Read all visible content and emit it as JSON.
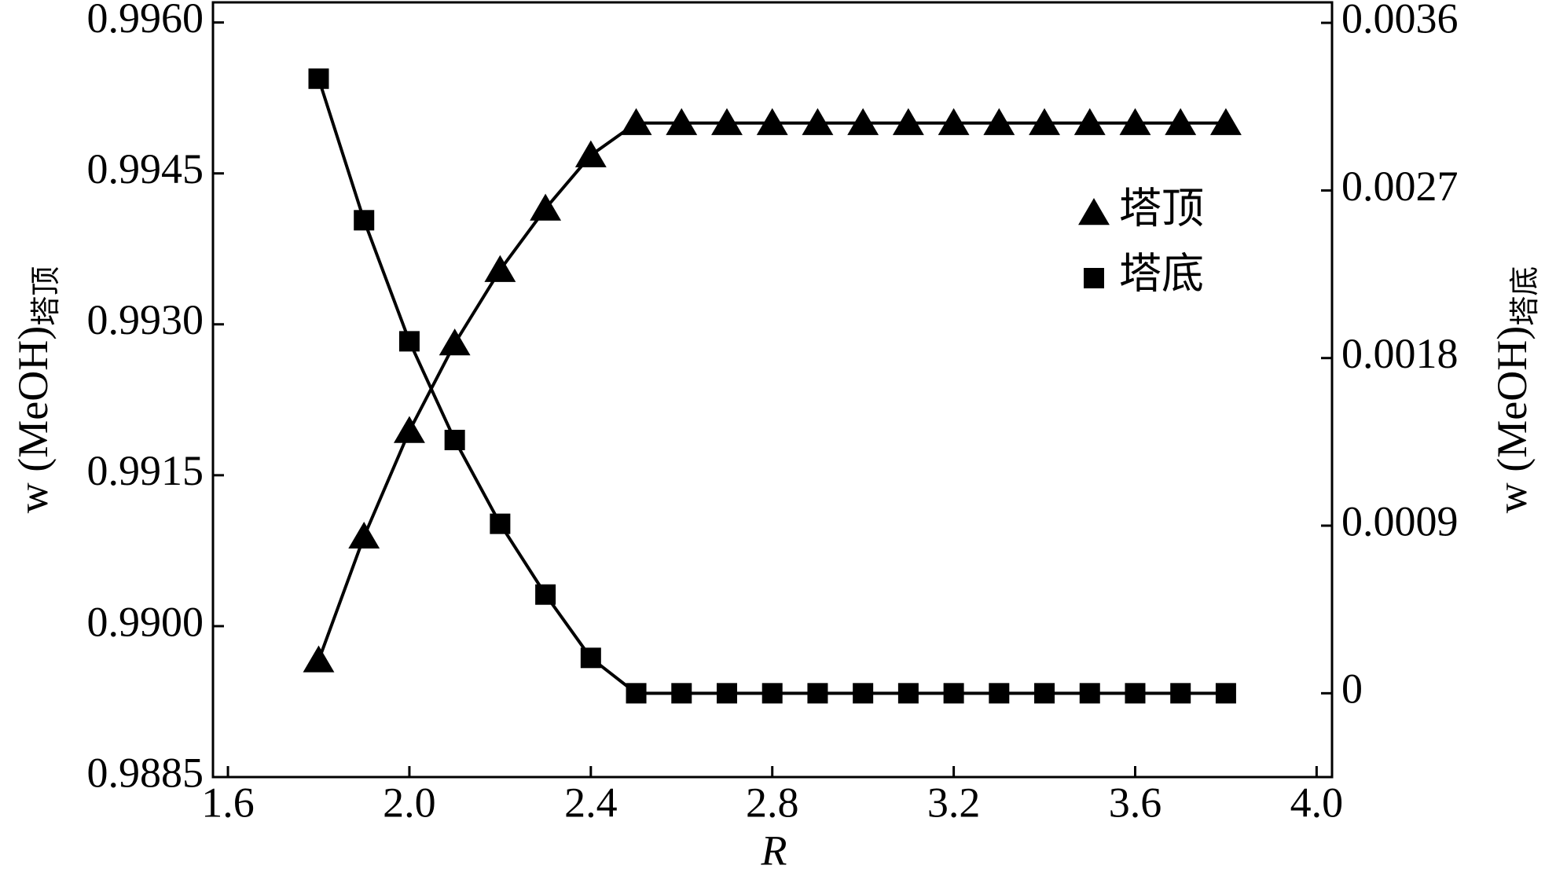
{
  "chart_data": {
    "type": "line",
    "xlabel": "R",
    "ylabel": "w (MeOH)",
    "ylabel_sub": "塔顶",
    "y2label": "w (MeOH)",
    "y2label_sub": "塔底",
    "x": [
      1.8,
      1.9,
      2.0,
      2.1,
      2.2,
      2.3,
      2.4,
      2.5,
      2.6,
      2.7,
      2.8,
      2.9,
      3.0,
      3.1,
      3.2,
      3.3,
      3.4,
      3.5,
      3.6,
      3.7,
      3.8
    ],
    "series": [
      {
        "name": "塔顶",
        "color": "#000000",
        "marker": "triangle",
        "values": [
          0.98966,
          0.99089,
          0.99194,
          0.99281,
          0.99354,
          0.99415,
          0.99468,
          0.995,
          0.995,
          0.995,
          0.995,
          0.995,
          0.995,
          0.995,
          0.995,
          0.995,
          0.995,
          0.995,
          0.995,
          0.995,
          0.995
        ]
      },
      {
        "name": "塔底",
        "color": "#000000",
        "marker": "square",
        "axis": "y2",
        "values": [
          0.0033,
          0.00254,
          0.00189,
          0.00136,
          0.00091,
          0.00053,
          0.00019,
          0,
          0,
          0,
          0,
          0,
          0,
          0,
          0,
          0,
          0,
          0,
          0,
          0,
          0
        ]
      }
    ],
    "xlim": [
      1.567,
      4.034
    ],
    "xticks": [
      1.6,
      {
        "value": 2.0,
        "label": "2.0"
      },
      2.4,
      2.8,
      3.2,
      3.6,
      {
        "value": 4.0,
        "label": "4.0"
      }
    ],
    "ylim": [
      0.9885,
      0.9962
    ],
    "yticks": [
      {
        "value": 0.9885,
        "label": "0.9885"
      },
      {
        "value": 0.99,
        "label": "0.9900"
      },
      {
        "value": 0.9915,
        "label": "0.9915"
      },
      {
        "value": 0.993,
        "label": "0.9930"
      },
      {
        "value": 0.9945,
        "label": "0.9945"
      },
      {
        "value": 0.996,
        "label": "0.9960"
      }
    ],
    "y2lim": [
      -0.00045,
      0.00371
    ],
    "y2ticks": [
      0,
      0.0009,
      0.0018,
      0.0027,
      0.0036
    ],
    "legend": "upper right",
    "grid": false
  }
}
